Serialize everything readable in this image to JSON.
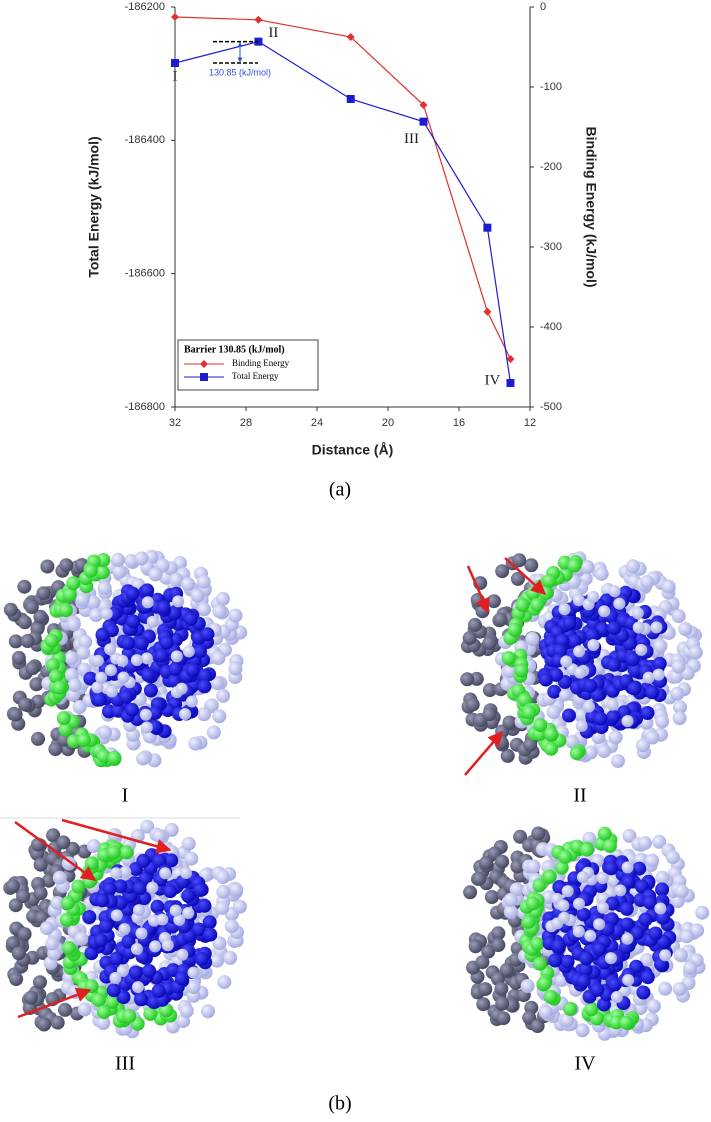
{
  "chart_data": {
    "type": "line",
    "x_label": "Distance (Å)",
    "y_label": "Total Energy (kJ/mol)",
    "y2_label": "Binding Energy (kJ/mol)",
    "x": [
      32,
      27.3,
      22.1,
      18.0,
      14.4,
      13.1
    ],
    "xlim": [
      32,
      12
    ],
    "xticks": [
      32,
      28,
      24,
      20,
      16,
      12
    ],
    "ylim": [
      -186800,
      -186200
    ],
    "yticks": [
      -186200,
      -186400,
      -186600,
      -186800
    ],
    "y2lim": [
      -500,
      0
    ],
    "y2ticks": [
      0,
      -100,
      -200,
      -300,
      -400,
      -500
    ],
    "series": [
      {
        "name": "Binding Energy",
        "color": "#e03030",
        "marker": "diamond",
        "axis": "y2",
        "values": [
          -12.5,
          -16,
          -37.5,
          -122.5,
          -381,
          -440
        ]
      },
      {
        "name": "Total Energy",
        "color": "#1c1cd0",
        "marker": "square",
        "values": [
          -186284,
          -186252,
          -186338,
          -186372,
          -186531,
          -186764
        ]
      }
    ],
    "legend_title": "Barrier 130.85 (kJ/mol)",
    "legend": "lower left",
    "annotations": [
      "I",
      "II",
      "III",
      "IV",
      "130.85 (kJ/mol)"
    ]
  },
  "figure": {
    "caption_a": "(a)",
    "caption_b": "(b)",
    "panels": [
      "I",
      "II",
      "III",
      "IV"
    ]
  }
}
